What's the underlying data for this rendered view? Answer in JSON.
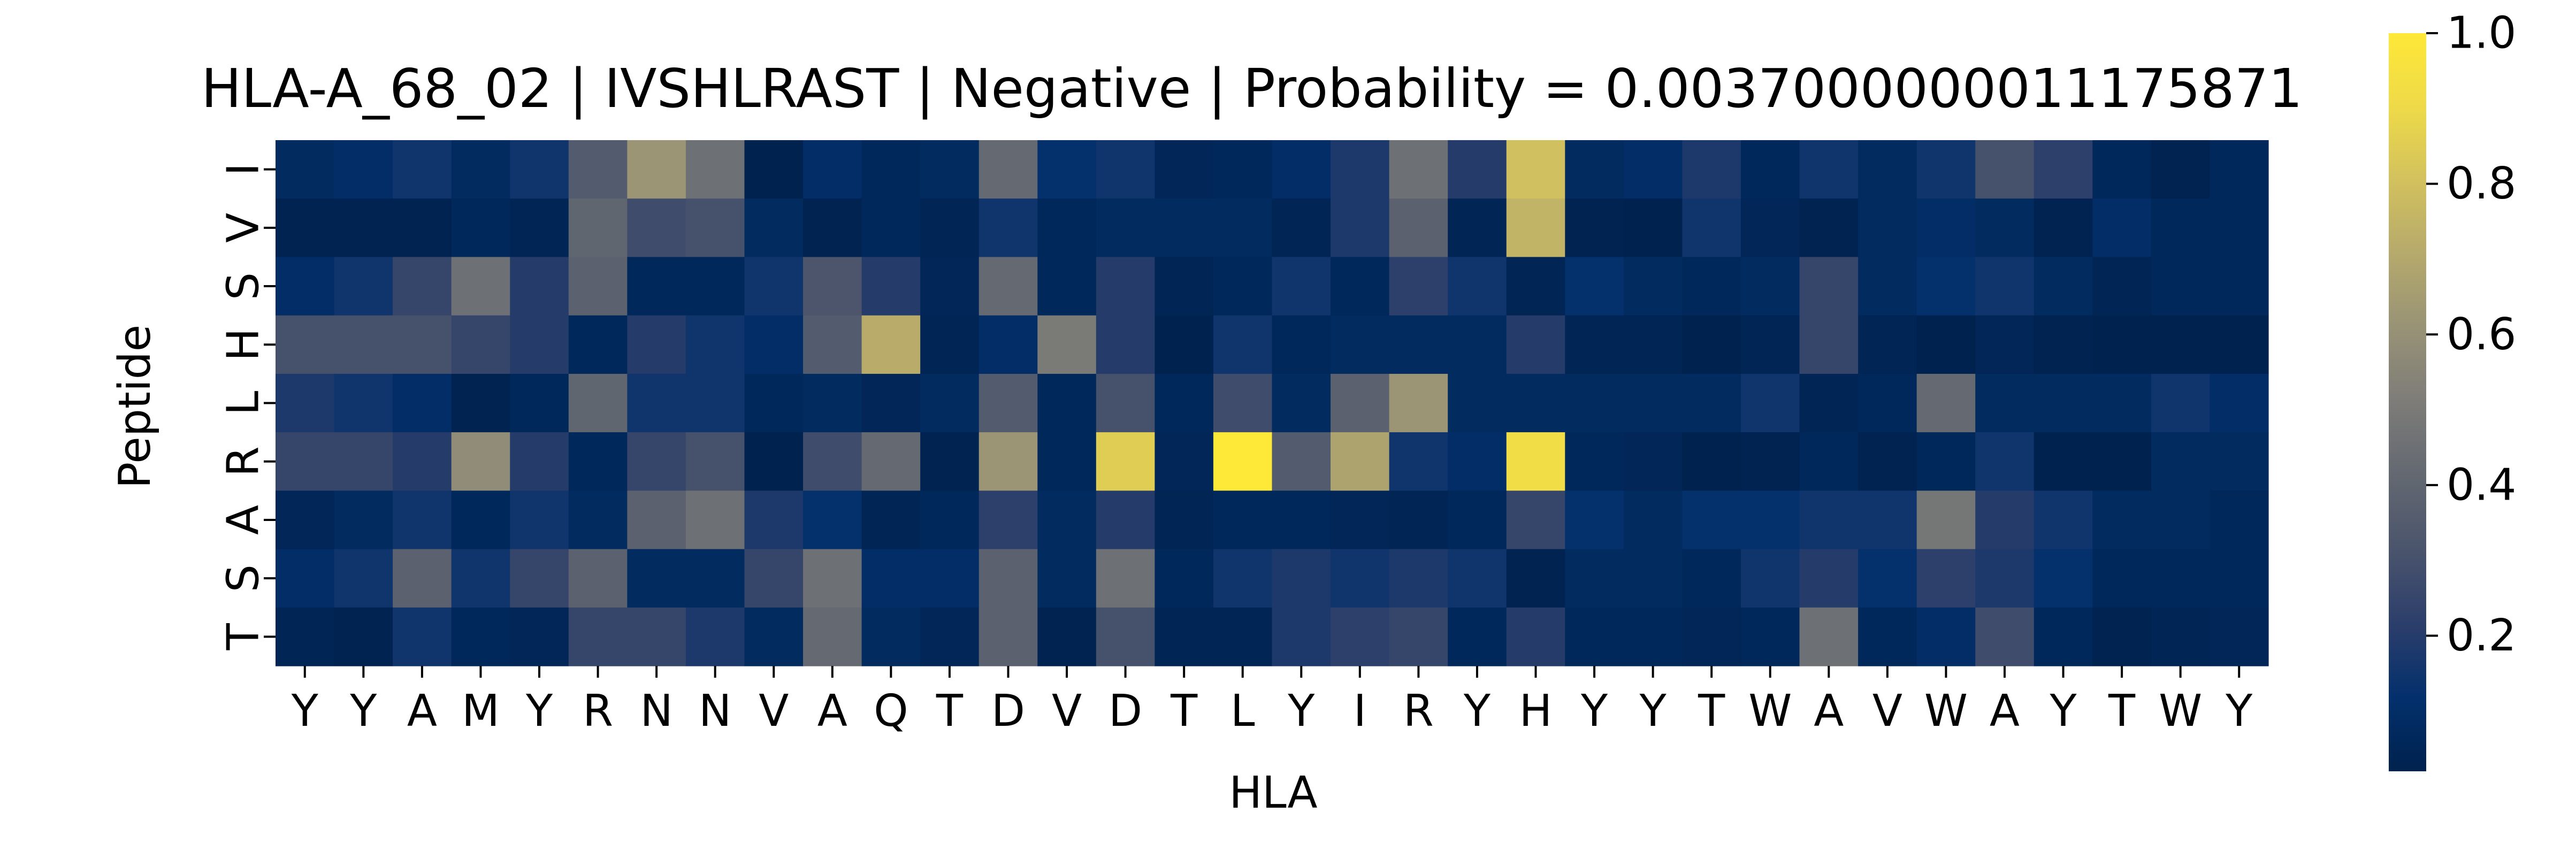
{
  "chart_data": {
    "type": "heatmap",
    "title": "HLA-A_68_02 | IVSHLRAST | Negative | Probability = 0.0037000000011175871",
    "xlabel": "HLA",
    "ylabel": "Peptide",
    "x_tick_labels": [
      "Y",
      "Y",
      "A",
      "M",
      "Y",
      "R",
      "N",
      "N",
      "V",
      "A",
      "Q",
      "T",
      "D",
      "V",
      "D",
      "T",
      "L",
      "Y",
      "I",
      "R",
      "Y",
      "H",
      "Y",
      "Y",
      "T",
      "W",
      "A",
      "V",
      "W",
      "A",
      "Y",
      "T",
      "W",
      "Y"
    ],
    "y_tick_labels": [
      "I",
      "V",
      "S",
      "H",
      "L",
      "R",
      "A",
      "S",
      "T"
    ],
    "colormap": "cividis",
    "colorbar": {
      "min": 0.02,
      "max": 1.0,
      "ticks": [
        0.2,
        0.4,
        0.6,
        0.8,
        1.0
      ],
      "tick_labels": [
        "0.2",
        "0.4",
        "0.6",
        "0.8",
        "1.0"
      ]
    },
    "values": [
      [
        0.08,
        0.1,
        0.15,
        0.08,
        0.15,
        0.35,
        0.62,
        0.45,
        0.02,
        0.1,
        0.06,
        0.08,
        0.42,
        0.12,
        0.15,
        0.05,
        0.06,
        0.1,
        0.18,
        0.45,
        0.2,
        0.8,
        0.08,
        0.1,
        0.18,
        0.06,
        0.15,
        0.08,
        0.15,
        0.3,
        0.22,
        0.06,
        0.03,
        0.06
      ],
      [
        0.03,
        0.03,
        0.03,
        0.06,
        0.04,
        0.4,
        0.28,
        0.3,
        0.08,
        0.03,
        0.06,
        0.04,
        0.15,
        0.06,
        0.08,
        0.08,
        0.08,
        0.04,
        0.18,
        0.38,
        0.04,
        0.75,
        0.03,
        0.02,
        0.15,
        0.05,
        0.03,
        0.08,
        0.1,
        0.08,
        0.03,
        0.1,
        0.06,
        0.06
      ],
      [
        0.1,
        0.15,
        0.25,
        0.45,
        0.2,
        0.38,
        0.06,
        0.06,
        0.15,
        0.32,
        0.2,
        0.05,
        0.42,
        0.06,
        0.2,
        0.04,
        0.06,
        0.15,
        0.06,
        0.22,
        0.15,
        0.04,
        0.12,
        0.08,
        0.06,
        0.08,
        0.25,
        0.08,
        0.12,
        0.15,
        0.08,
        0.04,
        0.06,
        0.06
      ],
      [
        0.3,
        0.3,
        0.3,
        0.25,
        0.2,
        0.06,
        0.2,
        0.15,
        0.1,
        0.35,
        0.72,
        0.04,
        0.1,
        0.5,
        0.2,
        0.01,
        0.15,
        0.06,
        0.08,
        0.08,
        0.08,
        0.2,
        0.04,
        0.04,
        0.01,
        0.04,
        0.25,
        0.04,
        0.01,
        0.05,
        0.03,
        0.02,
        0.02,
        0.02
      ],
      [
        0.18,
        0.15,
        0.1,
        0.03,
        0.06,
        0.4,
        0.15,
        0.15,
        0.06,
        0.08,
        0.05,
        0.08,
        0.35,
        0.06,
        0.3,
        0.06,
        0.28,
        0.08,
        0.38,
        0.62,
        0.08,
        0.08,
        0.08,
        0.08,
        0.08,
        0.15,
        0.04,
        0.06,
        0.42,
        0.08,
        0.08,
        0.08,
        0.15,
        0.1
      ],
      [
        0.25,
        0.25,
        0.2,
        0.58,
        0.2,
        0.06,
        0.25,
        0.3,
        0.02,
        0.28,
        0.42,
        0.03,
        0.62,
        0.06,
        0.85,
        0.05,
        1.0,
        0.35,
        0.68,
        0.15,
        0.1,
        0.92,
        0.06,
        0.05,
        0.02,
        0.03,
        0.06,
        0.03,
        0.06,
        0.15,
        0.02,
        0.02,
        0.08,
        0.08
      ],
      [
        0.05,
        0.08,
        0.15,
        0.06,
        0.15,
        0.08,
        0.38,
        0.45,
        0.18,
        0.12,
        0.04,
        0.06,
        0.22,
        0.08,
        0.2,
        0.04,
        0.06,
        0.06,
        0.05,
        0.04,
        0.06,
        0.25,
        0.12,
        0.08,
        0.12,
        0.12,
        0.15,
        0.15,
        0.48,
        0.2,
        0.15,
        0.08,
        0.08,
        0.06
      ],
      [
        0.1,
        0.15,
        0.38,
        0.15,
        0.25,
        0.38,
        0.08,
        0.08,
        0.25,
        0.45,
        0.1,
        0.1,
        0.38,
        0.08,
        0.45,
        0.06,
        0.15,
        0.18,
        0.15,
        0.18,
        0.15,
        0.03,
        0.08,
        0.08,
        0.06,
        0.15,
        0.2,
        0.12,
        0.22,
        0.18,
        0.12,
        0.06,
        0.06,
        0.06
      ],
      [
        0.04,
        0.03,
        0.15,
        0.06,
        0.05,
        0.25,
        0.25,
        0.18,
        0.08,
        0.42,
        0.08,
        0.05,
        0.38,
        0.03,
        0.3,
        0.04,
        0.04,
        0.18,
        0.22,
        0.25,
        0.06,
        0.2,
        0.06,
        0.06,
        0.05,
        0.06,
        0.45,
        0.06,
        0.1,
        0.28,
        0.06,
        0.03,
        0.04,
        0.05
      ]
    ]
  }
}
